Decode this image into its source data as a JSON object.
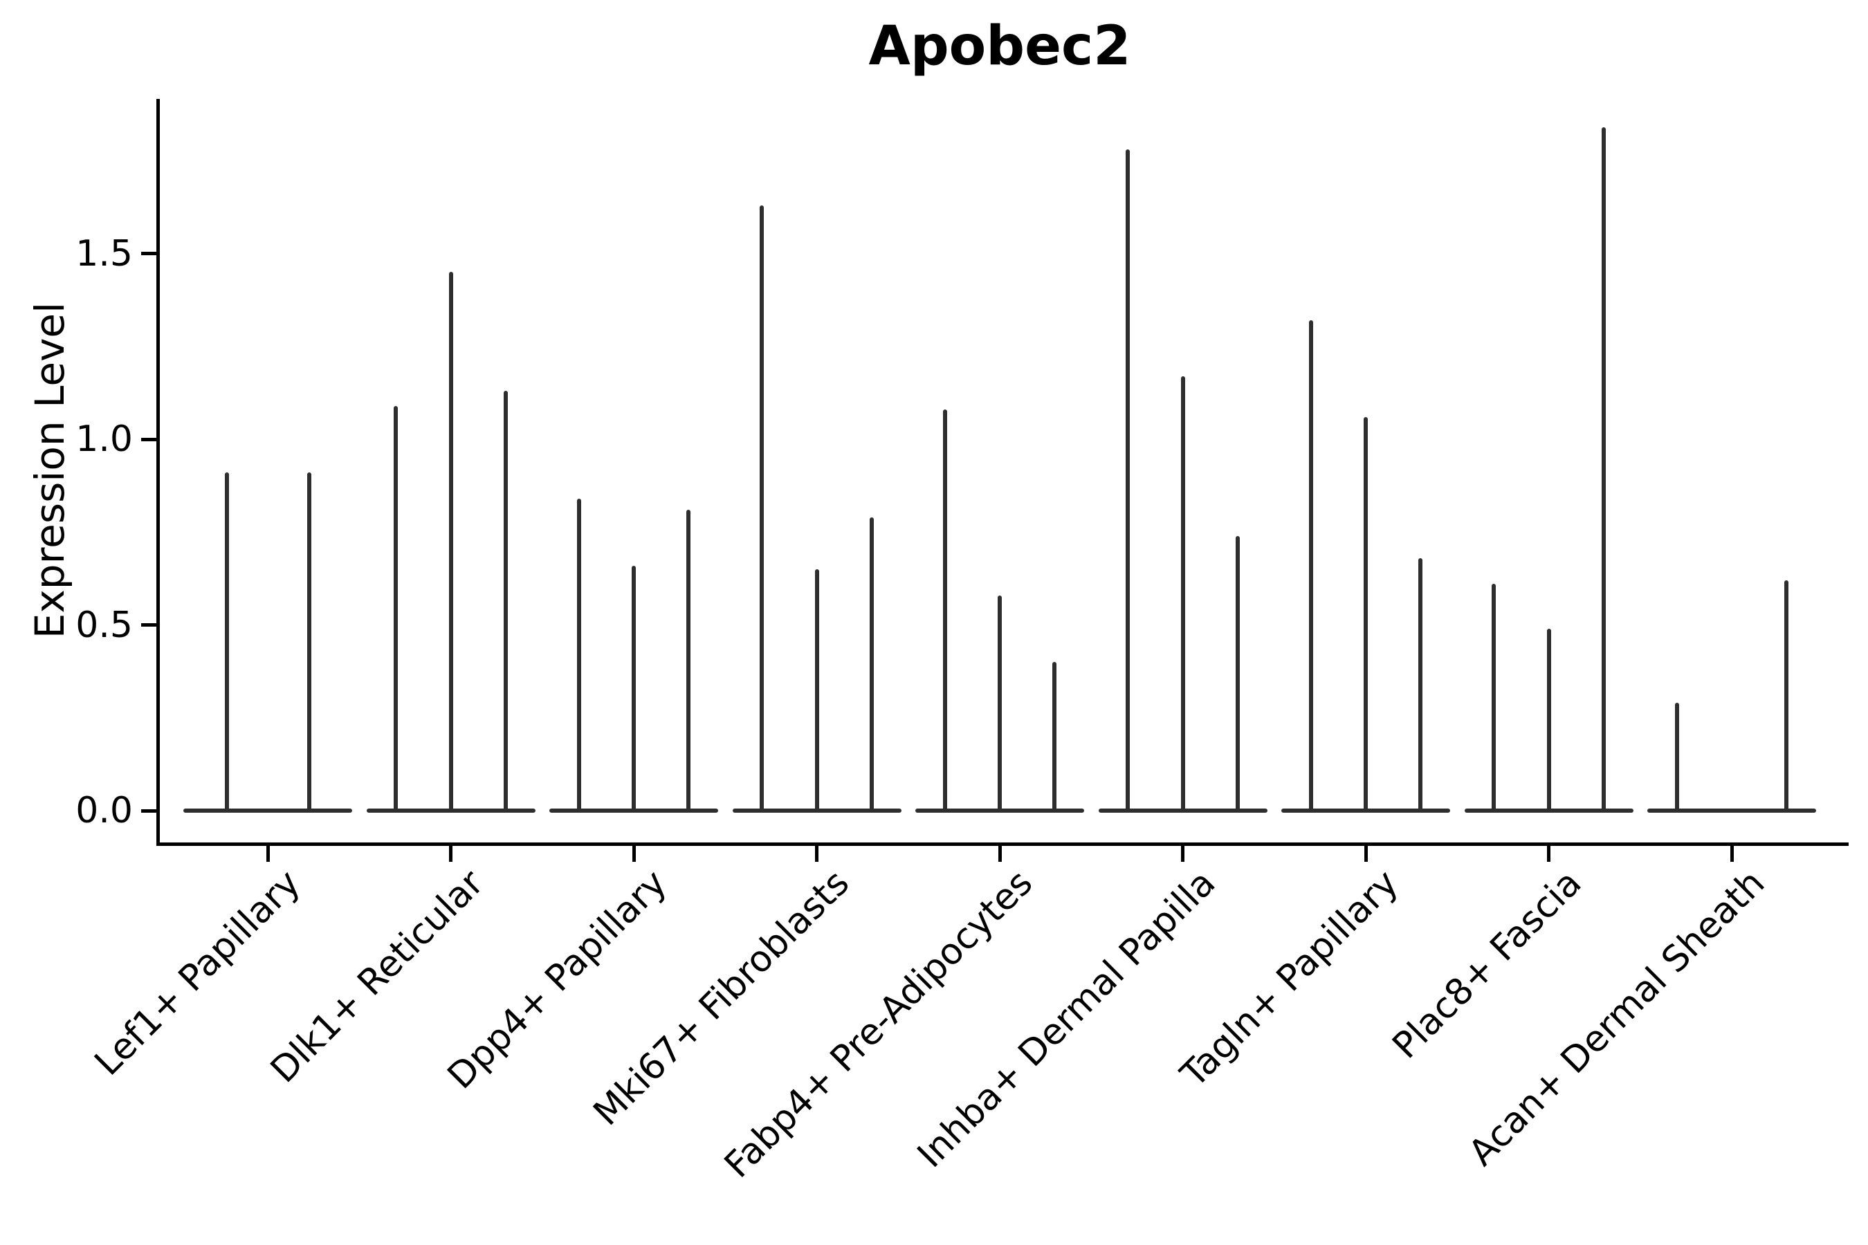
{
  "chart_data": {
    "type": "violin",
    "title": "Apobec2",
    "ylabel": "Expression Level",
    "xlabel": "",
    "ylim": [
      0,
      1.93
    ],
    "grid": false,
    "legend": "none",
    "ink_color": "#000000",
    "violin_color": "#2e2e2e",
    "yticks": [
      {
        "label": "0.0",
        "value": 0.0
      },
      {
        "label": "0.5",
        "value": 0.5
      },
      {
        "label": "1.0",
        "value": 1.0
      },
      {
        "label": "1.5",
        "value": 1.5
      }
    ],
    "note": "Needle-thin violins: nearly all cells at 0 expression; spike tops = maximum expression per violin; null = violin with no expressing cells (flat baseline only)",
    "groups": [
      {
        "label": "Lef1+ Papillary",
        "spike_values": [
          0.91,
          0.91
        ]
      },
      {
        "label": "Dlk1+ Reticular",
        "spike_values": [
          1.09,
          1.45,
          1.13
        ]
      },
      {
        "label": "Dpp4+ Papillary",
        "spike_values": [
          0.84,
          0.66,
          0.81
        ]
      },
      {
        "label": "Mki67+ Fibroblasts",
        "spike_values": [
          1.63,
          0.65,
          0.79
        ]
      },
      {
        "label": "Fabp4+ Pre-Adipocytes",
        "spike_values": [
          1.08,
          0.58,
          0.4
        ]
      },
      {
        "label": "Inhba+ Dermal Papilla",
        "spike_values": [
          1.78,
          1.17,
          0.74
        ]
      },
      {
        "label": "Tagln+ Papillary",
        "spike_values": [
          1.32,
          1.06,
          0.68
        ]
      },
      {
        "label": "Plac8+ Fascia",
        "spike_values": [
          0.61,
          0.49,
          1.84
        ]
      },
      {
        "label": "Acan+ Dermal Sheath",
        "spike_values": [
          0.29,
          null,
          0.62
        ]
      }
    ]
  }
}
